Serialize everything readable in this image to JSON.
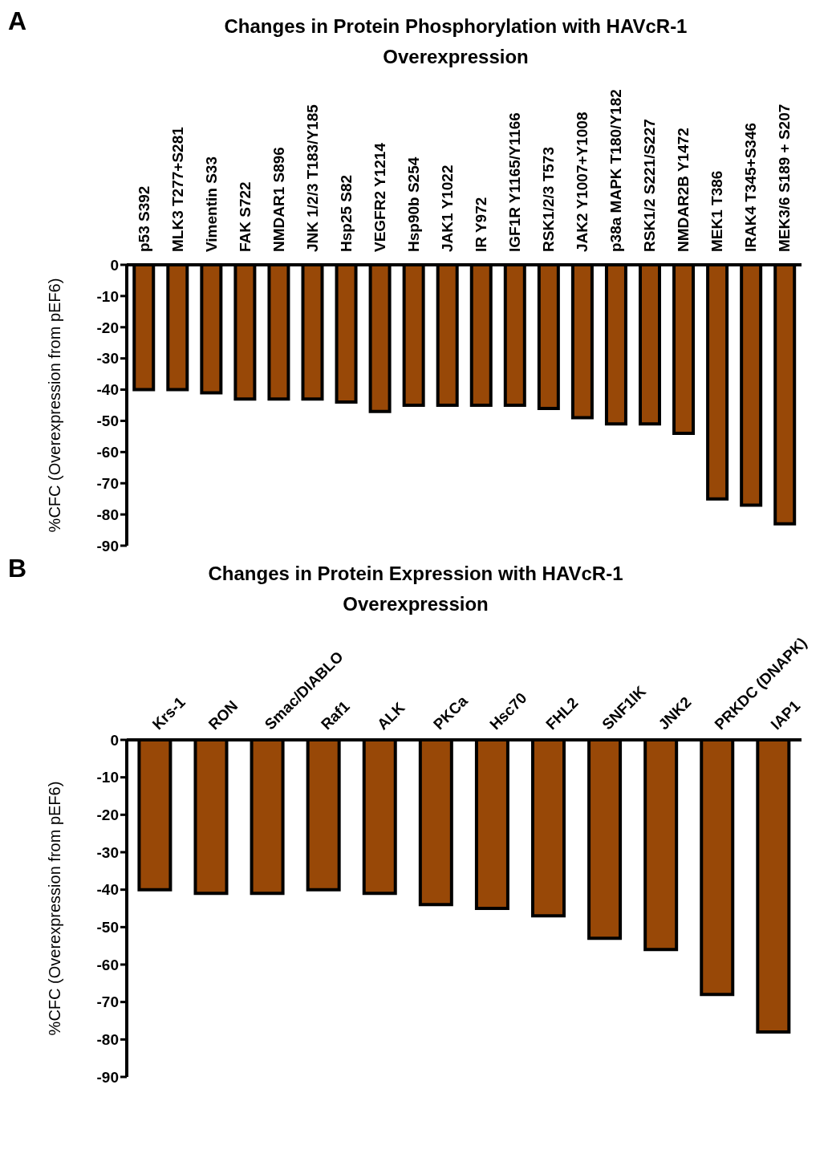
{
  "chart_data": [
    {
      "type": "bar",
      "title": "Changes in Protein Phosphorylation with HAVcR-1 Overexpression",
      "ylabel": "%CFC (Overexpression from pEF6)",
      "annotations": [
        "A"
      ],
      "categories": [
        "p53 S392",
        "MLK3 T277+S281",
        "Vimentin S33",
        "FAK S722",
        "NMDAR1 S896",
        "JNK 1/2/3 T183/Y185",
        "Hsp25 S82",
        "VEGFR2 Y1214",
        "Hsp90b S254",
        "JAK1 Y1022",
        "IR Y972",
        "IGF1R Y1165/Y1166",
        "RSK1/2/3 T573",
        "JAK2 Y1007+Y1008",
        "p38a MAPK T180/Y182",
        "RSK1/2 S221/S227",
        "NMDAR2B Y1472",
        "MEK1 T386",
        "IRAK4 T345+S346",
        "MEK3/6 S189 + S207"
      ],
      "values": [
        -40,
        -40,
        -41,
        -43,
        -43,
        -43,
        -44,
        -47,
        -45,
        -45,
        -45,
        -45,
        -46,
        -49,
        -51,
        -51,
        -54,
        -75,
        -77,
        -83
      ],
      "color": "#984807",
      "ylim": [
        -90,
        0
      ],
      "yticks": [
        0,
        -10,
        -20,
        -30,
        -40,
        -50,
        -60,
        -70,
        -80,
        -90
      ],
      "grid": false,
      "legend": false
    },
    {
      "type": "bar",
      "title": "Changes in Protein Expression with HAVcR-1 Overexpression",
      "ylabel": "%CFC (Overexpression from pEF6)",
      "annotations": [
        "B"
      ],
      "categories": [
        "Krs-1",
        "RON",
        "Smac/DIABLO",
        "Raf1",
        "ALK",
        "PKCa",
        "Hsc70",
        "FHL2",
        "SNF1lK",
        "JNK2",
        "PRKDC (DNAPK)",
        "IAP1"
      ],
      "values": [
        -40,
        -41,
        -41,
        -40,
        -41,
        -44,
        -45,
        -47,
        -53,
        -56,
        -68,
        -78
      ],
      "color": "#984807",
      "ylim": [
        -90,
        0
      ],
      "yticks": [
        0,
        -10,
        -20,
        -30,
        -40,
        -50,
        -60,
        -70,
        -80,
        -90
      ],
      "grid": false,
      "legend": false
    }
  ]
}
